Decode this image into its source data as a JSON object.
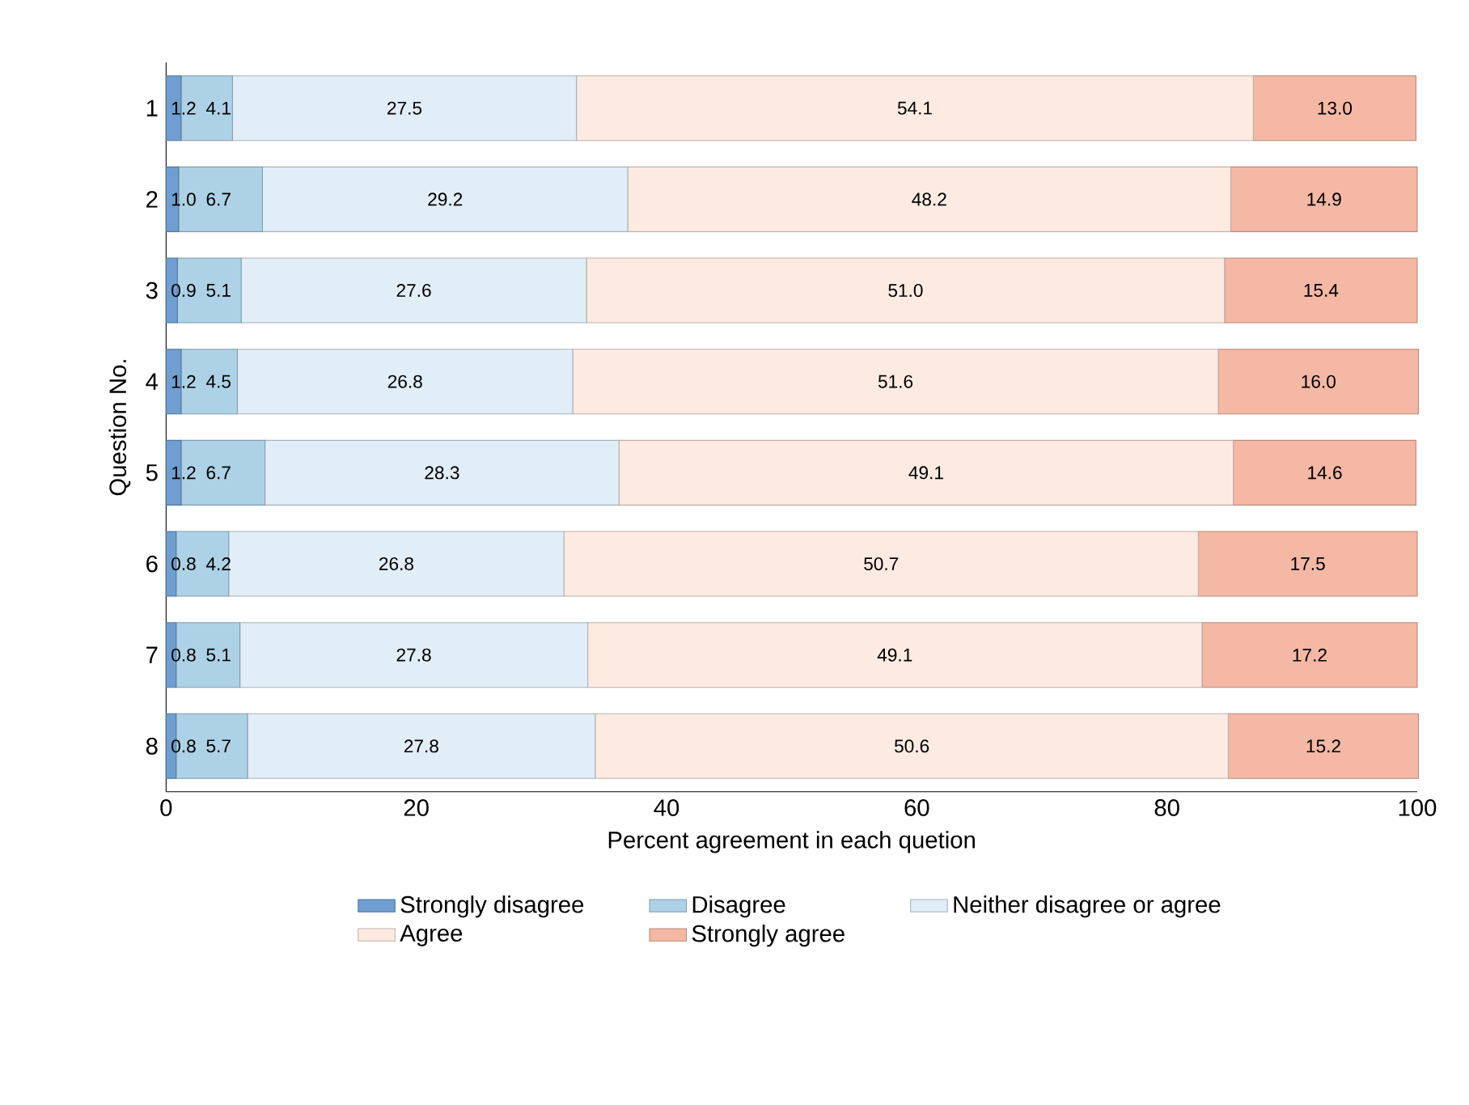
{
  "chart_data": {
    "type": "bar",
    "orientation": "horizontal",
    "stacked": true,
    "xlabel": "Percent agreement in each quetion",
    "ylabel": "Question No.",
    "categories": [
      "1",
      "2",
      "3",
      "4",
      "5",
      "6",
      "7",
      "8"
    ],
    "xlim": [
      0,
      100
    ],
    "xticks": [
      0,
      20,
      40,
      60,
      80,
      100
    ],
    "legend": "bottom",
    "grid": false,
    "series": [
      {
        "name": "Strongly disagree",
        "color": "#6f9fd0",
        "values": [
          1.2,
          1.0,
          0.9,
          1.2,
          1.2,
          0.8,
          0.8,
          0.8
        ],
        "value_labels": [
          "1.2",
          "1.0",
          "0.9",
          "1.2",
          "1.2",
          "0.8",
          "0.8",
          "0.8"
        ]
      },
      {
        "name": "Disagree",
        "color": "#add2e6",
        "values": [
          4.1,
          6.7,
          5.1,
          4.5,
          6.7,
          4.2,
          5.1,
          5.7
        ],
        "value_labels": [
          "4.1",
          "6.7",
          "5.1",
          "4.5",
          "6.7",
          "4.2",
          "5.1",
          "5.7"
        ]
      },
      {
        "name": "Neither disagree or agree",
        "color": "#e1edf7",
        "values": [
          27.5,
          29.2,
          27.6,
          26.8,
          28.3,
          26.8,
          27.8,
          27.8
        ],
        "value_labels": [
          "27.5",
          "29.2",
          "27.6",
          "26.8",
          "28.3",
          "26.8",
          "27.8",
          "27.8"
        ]
      },
      {
        "name": "Agree",
        "color": "#fdebe2",
        "values": [
          54.1,
          48.2,
          51.0,
          51.6,
          49.1,
          50.7,
          49.1,
          50.6
        ],
        "value_labels": [
          "54.1",
          "48.2",
          "51.0",
          "51.6",
          "49.1",
          "50.7",
          "49.1",
          "50.6"
        ]
      },
      {
        "name": "Strongly agree",
        "color": "#f4b8a4",
        "values": [
          13.0,
          14.9,
          15.4,
          16.0,
          14.6,
          17.5,
          17.2,
          15.2
        ],
        "value_labels": [
          "13.0",
          "14.9",
          "15.4",
          "16.0",
          "14.6",
          "17.5",
          "17.2",
          "15.2"
        ]
      }
    ]
  }
}
